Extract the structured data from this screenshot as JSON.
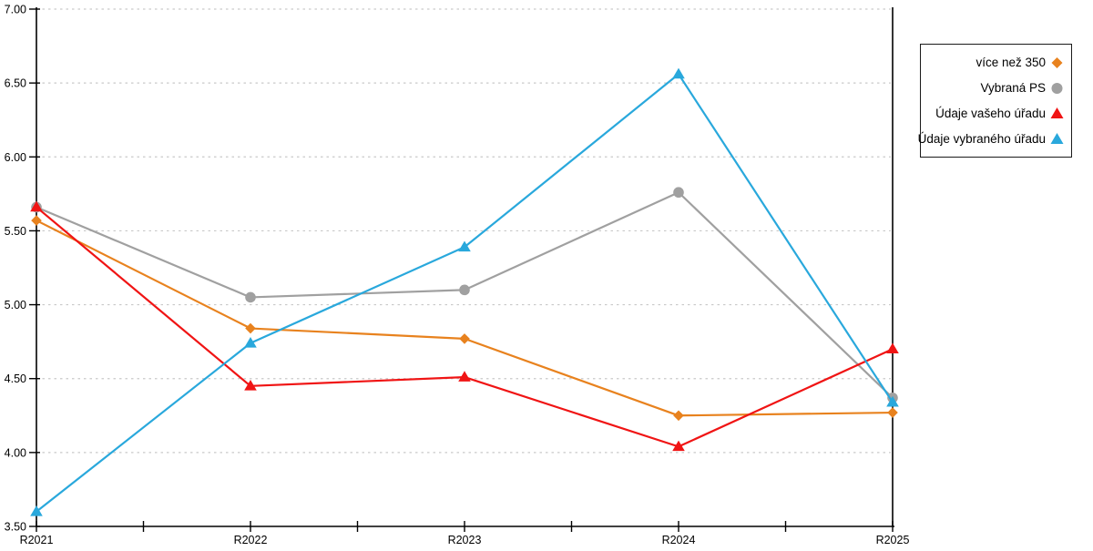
{
  "chart_data": {
    "type": "line",
    "title": "",
    "xlabel": "",
    "ylabel": "",
    "categories": [
      "R2021",
      "R2022",
      "R2023",
      "R2024",
      "R2025"
    ],
    "series": [
      {
        "name": "více než 350",
        "marker": "diamond",
        "color": "#E8821E",
        "values": [
          5.57,
          4.84,
          4.77,
          4.25,
          4.27
        ]
      },
      {
        "name": "Vybraná PS",
        "marker": "circle",
        "color": "#A0A0A0",
        "values": [
          5.66,
          5.05,
          5.1,
          5.76,
          4.37
        ]
      },
      {
        "name": "Údaje vašeho úřadu",
        "marker": "triangle",
        "color": "#F01414",
        "values": [
          5.66,
          4.45,
          4.51,
          4.04,
          4.7
        ]
      },
      {
        "name": "Údaje vybraného úřadu",
        "marker": "triangle",
        "color": "#29A8DC",
        "values": [
          3.6,
          4.74,
          5.39,
          6.56,
          4.34
        ]
      }
    ],
    "y_ticks": [
      "7.00",
      "6.50",
      "6.00",
      "5.50",
      "5.00",
      "4.50",
      "4.00",
      "3.50"
    ],
    "ylim": [
      3.5,
      7.0
    ],
    "grid": "horizontal-dashed",
    "grid_color": "#C9C9C9",
    "axis_color": "#000000",
    "legend_position": "right"
  }
}
